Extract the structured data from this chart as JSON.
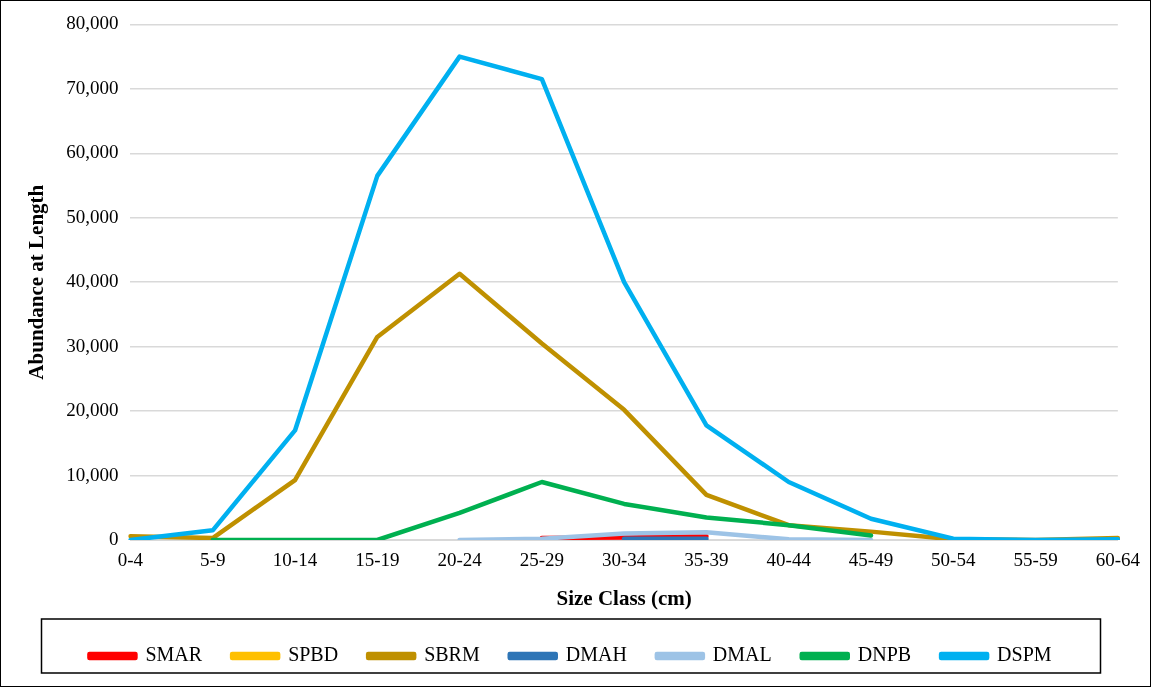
{
  "chart_data": {
    "type": "line",
    "xlabel": "Size Class (cm)",
    "ylabel": "Abundance at Length",
    "categories": [
      "0-4",
      "5-9",
      "10-14",
      "15-19",
      "20-24",
      "25-29",
      "30-34",
      "35-39",
      "40-44",
      "45-49",
      "50-54",
      "55-59",
      "60-64"
    ],
    "series": [
      {
        "name": "SMAR",
        "color": "#ff0000",
        "values": [
          null,
          null,
          null,
          null,
          null,
          300,
          400,
          600,
          null,
          null,
          null,
          null,
          null
        ]
      },
      {
        "name": "SPBD",
        "color": "#ffc000",
        "values": [
          null,
          null,
          null,
          null,
          null,
          null,
          null,
          null,
          null,
          null,
          null,
          null,
          null
        ]
      },
      {
        "name": "SBRM",
        "color": "#bf9000",
        "values": [
          600,
          300,
          9300,
          31500,
          41300,
          30500,
          20200,
          7000,
          2300,
          1300,
          100,
          0,
          300
        ]
      },
      {
        "name": "DMAH",
        "color": "#2e75b6",
        "values": [
          null,
          null,
          null,
          null,
          null,
          null,
          200,
          200,
          null,
          null,
          null,
          null,
          null
        ]
      },
      {
        "name": "DMAL",
        "color": "#9dc3e6",
        "values": [
          null,
          null,
          null,
          null,
          0,
          200,
          1000,
          1200,
          100,
          0,
          null,
          null,
          null
        ]
      },
      {
        "name": "DNPB",
        "color": "#00b050",
        "values": [
          null,
          0,
          0,
          0,
          4200,
          9000,
          5600,
          3500,
          2300,
          700,
          null,
          null,
          null
        ]
      },
      {
        "name": "DSPM",
        "color": "#00b0f0",
        "values": [
          0,
          1500,
          17000,
          56500,
          75000,
          71500,
          40000,
          17800,
          9000,
          3300,
          200,
          0,
          100
        ]
      }
    ],
    "ylim": [
      0,
      80000
    ],
    "yticks": [
      0,
      {
        "value": 10000,
        "label": "10,000"
      },
      {
        "value": 20000,
        "label": "20,000"
      },
      {
        "value": 30000,
        "label": "30,000"
      },
      {
        "value": 40000,
        "label": "40,000"
      },
      {
        "value": 50000,
        "label": "50,000"
      },
      {
        "value": 60000,
        "label": "60,000"
      },
      {
        "value": 70000,
        "label": "70,000"
      },
      {
        "value": 80000,
        "label": "80,000"
      }
    ],
    "grid": "y",
    "legend": "bottom",
    "marker": "none",
    "line_style": "solid"
  }
}
